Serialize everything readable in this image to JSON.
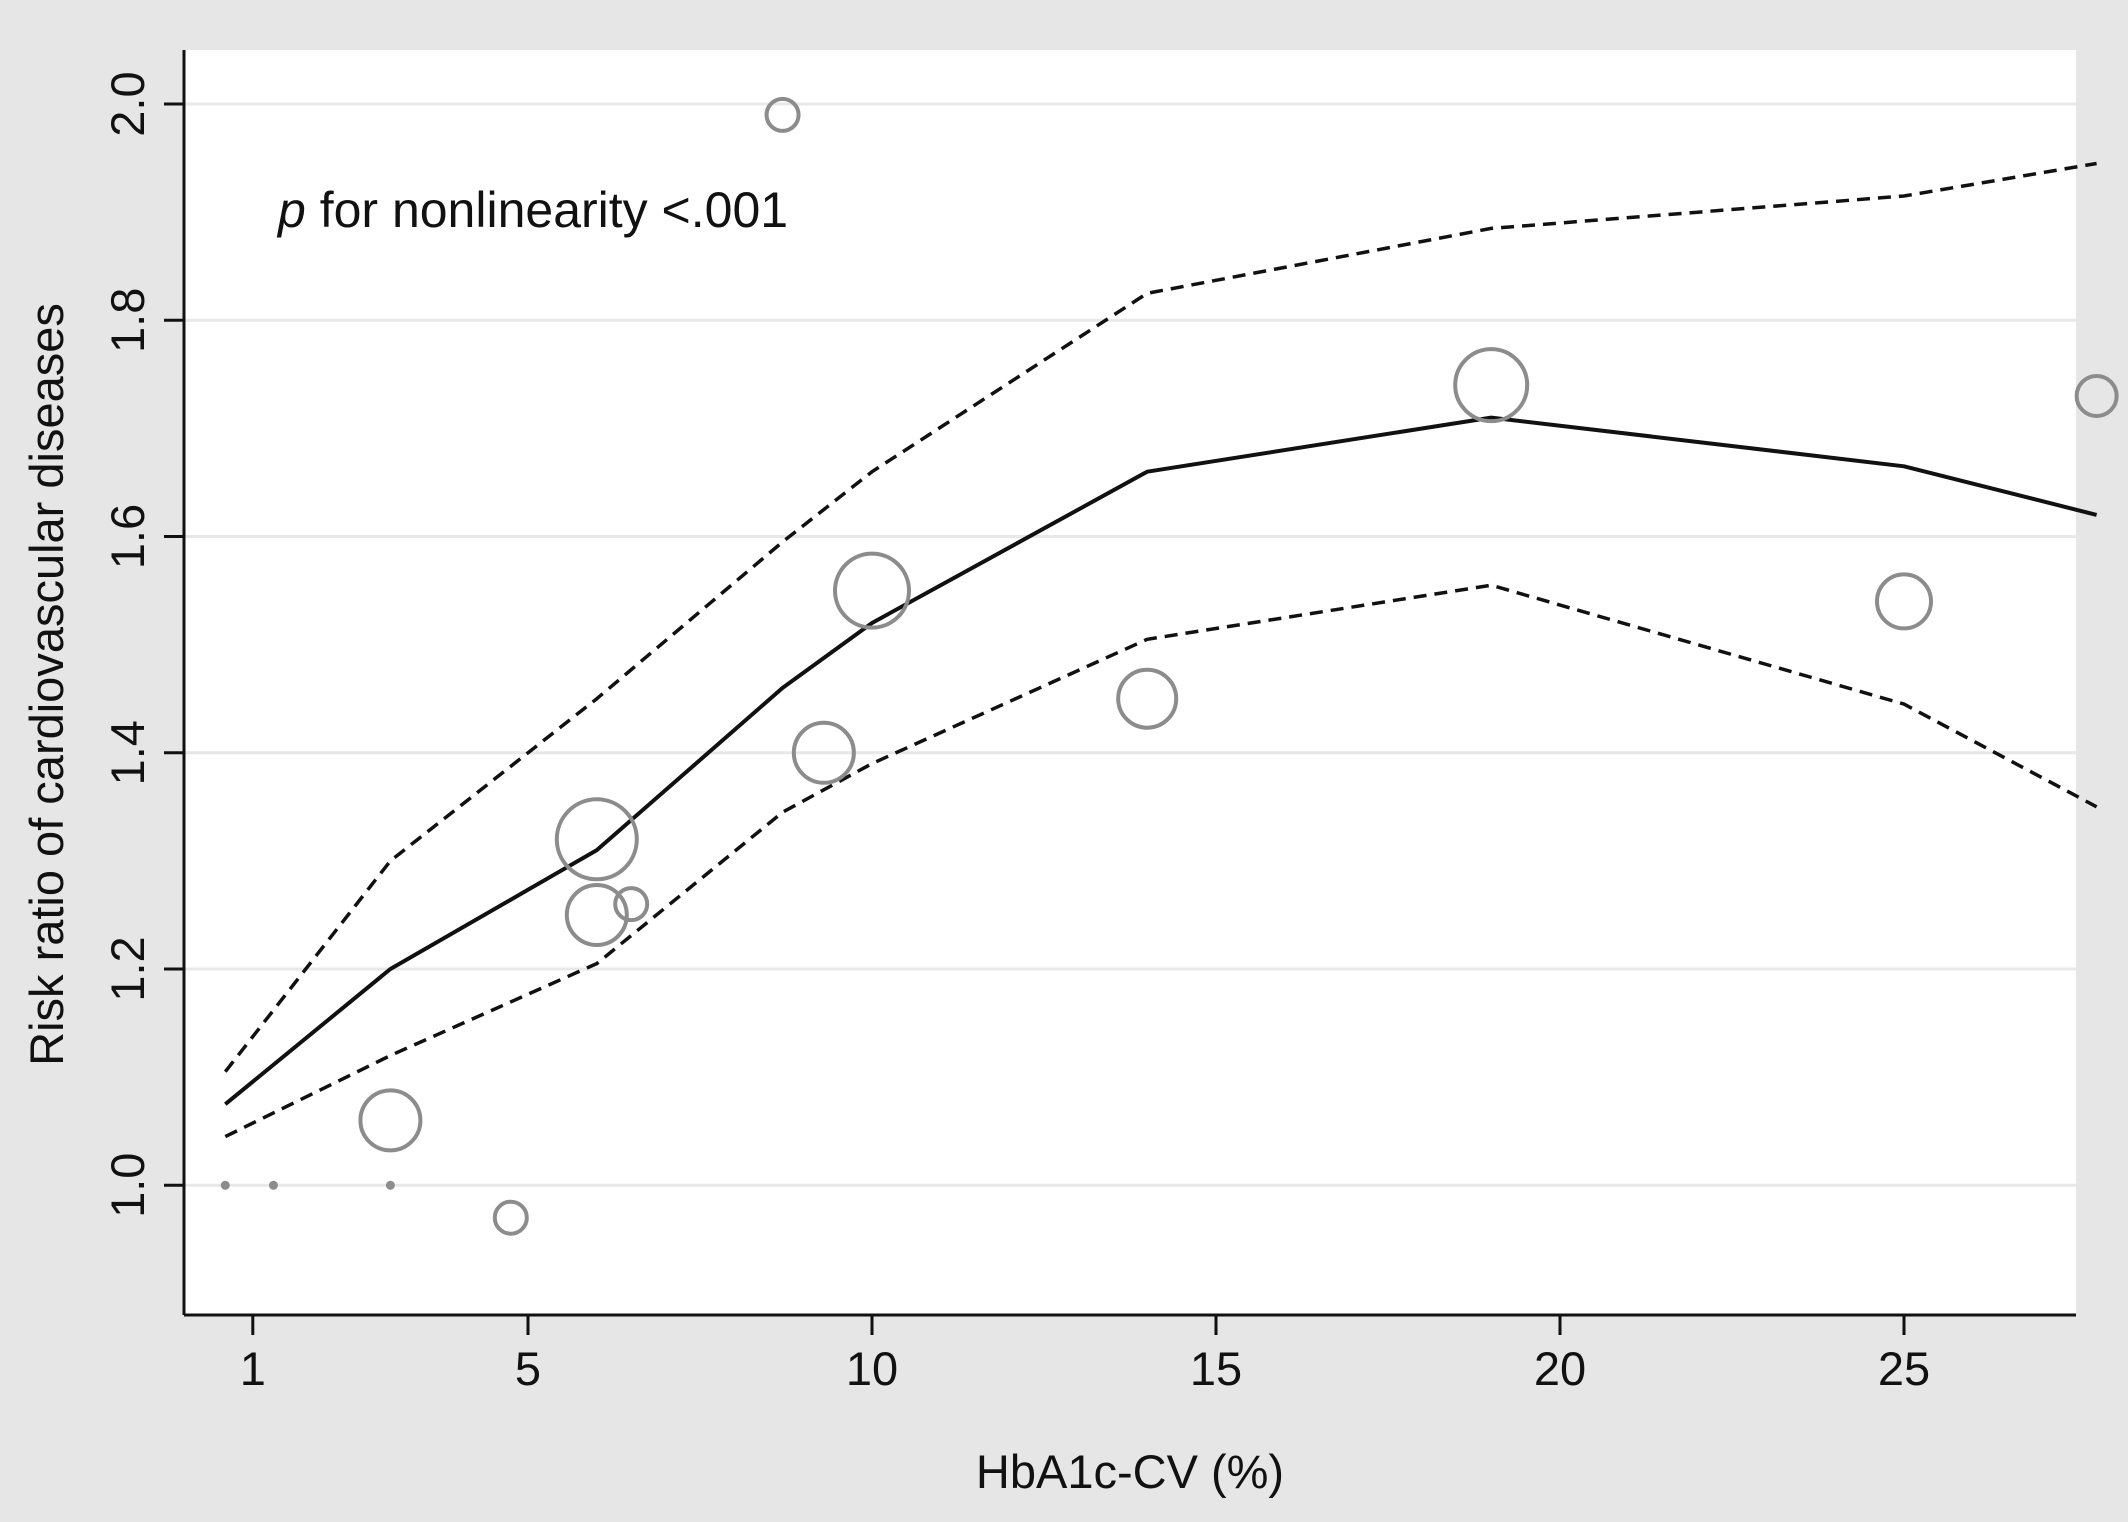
{
  "chart_data": {
    "type": "line",
    "xlabel": "HbA1c-CV (%)",
    "ylabel": "Risk ratio of cardiovascular diseases",
    "annotation": {
      "p_symbol": "p",
      "text": " for nonlinearity <.001"
    },
    "xlim": [
      0.0,
      27.5
    ],
    "ylim": [
      0.88,
      2.05
    ],
    "x_ticks": [
      1,
      5,
      10,
      15,
      20,
      25
    ],
    "y_ticks": [
      1.0,
      1.2,
      1.4,
      1.6,
      1.8,
      2.0
    ],
    "y_tick_labels": [
      "1.0",
      "1.2",
      "1.4",
      "1.6",
      "1.8",
      "2.0"
    ],
    "grid": "horizontal",
    "series": [
      {
        "style": "solid",
        "color": "#111111",
        "x": [
          0.6,
          3.0,
          6.0,
          8.7,
          10.0,
          14.0,
          19.0,
          25.0,
          27.8
        ],
        "y": [
          1.075,
          1.2,
          1.31,
          1.46,
          1.52,
          1.66,
          1.71,
          1.665,
          1.62
        ]
      },
      {
        "style": "dashed",
        "color": "#111111",
        "x": [
          0.6,
          3.0,
          6.0,
          8.7,
          10.0,
          14.0,
          19.0,
          25.0,
          27.8
        ],
        "y": [
          1.105,
          1.3,
          1.45,
          1.595,
          1.66,
          1.825,
          1.885,
          1.915,
          1.945
        ]
      },
      {
        "style": "dashed",
        "color": "#111111",
        "x": [
          0.6,
          3.0,
          6.0,
          8.7,
          10.0,
          14.0,
          19.0,
          25.0,
          27.8
        ],
        "y": [
          1.045,
          1.12,
          1.205,
          1.345,
          1.39,
          1.505,
          1.555,
          1.445,
          1.35
        ]
      }
    ],
    "points": [
      {
        "x": 0.6,
        "y": 1.0,
        "size": 0
      },
      {
        "x": 1.3,
        "y": 1.0,
        "size": 0
      },
      {
        "x": 3.0,
        "y": 1.0,
        "size": 0
      },
      {
        "x": 3.0,
        "y": 1.06,
        "size": 3.0
      },
      {
        "x": 4.75,
        "y": 0.97,
        "size": 1.6
      },
      {
        "x": 6.0,
        "y": 1.32,
        "size": 4.0
      },
      {
        "x": 6.0,
        "y": 1.25,
        "size": 3.0
      },
      {
        "x": 6.5,
        "y": 1.26,
        "size": 1.6
      },
      {
        "x": 8.7,
        "y": 1.99,
        "size": 1.6
      },
      {
        "x": 9.3,
        "y": 1.4,
        "size": 3.0
      },
      {
        "x": 10.0,
        "y": 1.55,
        "size": 3.7
      },
      {
        "x": 14.0,
        "y": 1.45,
        "size": 2.9
      },
      {
        "x": 19.0,
        "y": 1.74,
        "size": 3.6
      },
      {
        "x": 25.0,
        "y": 1.54,
        "size": 2.7
      },
      {
        "x": 27.8,
        "y": 1.73,
        "size": 2.0
      }
    ],
    "point_color": "#8c8c8c"
  }
}
